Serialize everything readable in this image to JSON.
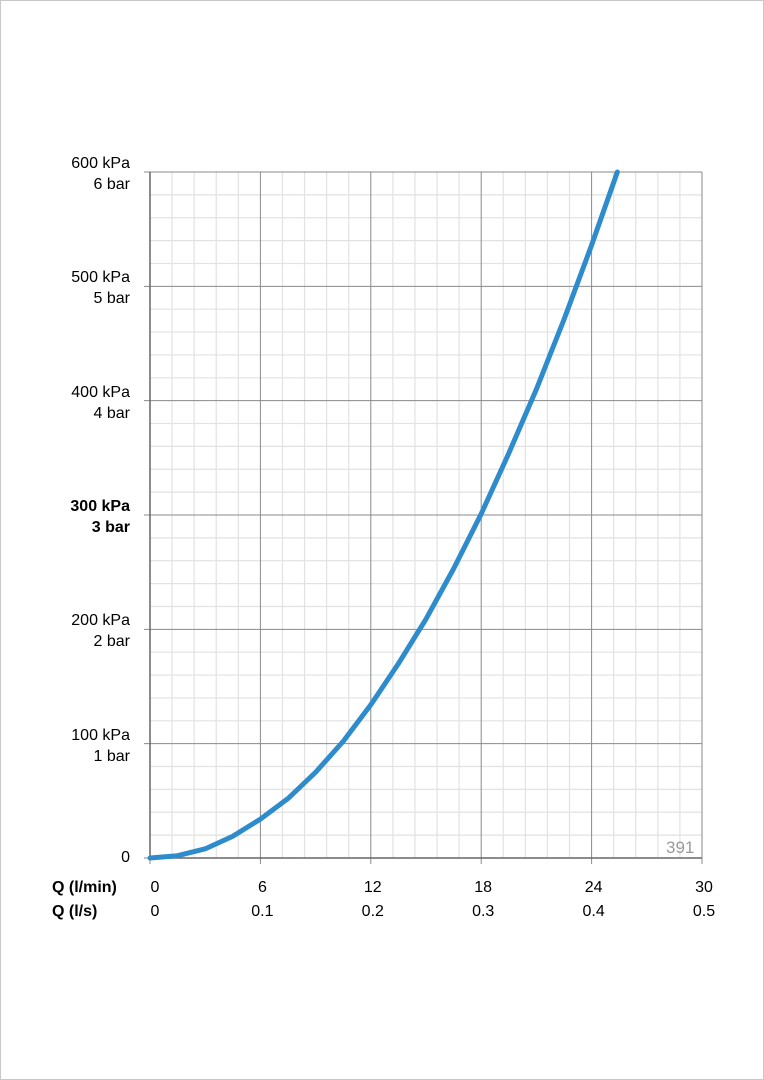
{
  "chart_data": {
    "type": "line",
    "x_axes": [
      {
        "label": "Q (l/min)",
        "ticks": [
          "0",
          "6",
          "12",
          "18",
          "24",
          "30"
        ]
      },
      {
        "label": "Q (l/s)",
        "ticks": [
          "0",
          "0.1",
          "0.2",
          "0.3",
          "0.4",
          "0.5"
        ]
      }
    ],
    "y_ticks": [
      {
        "kpa": "0",
        "bar": "",
        "bold": false
      },
      {
        "kpa": "100 kPa",
        "bar": "1 bar",
        "bold": false
      },
      {
        "kpa": "200 kPa",
        "bar": "2 bar",
        "bold": false
      },
      {
        "kpa": "300 kPa",
        "bar": "3 bar",
        "bold": true
      },
      {
        "kpa": "400 kPa",
        "bar": "4 bar",
        "bold": false
      },
      {
        "kpa": "500 kPa",
        "bar": "5 bar",
        "bold": false
      },
      {
        "kpa": "600 kPa",
        "bar": "6 bar",
        "bold": false
      }
    ],
    "xlim": [
      0,
      30
    ],
    "ylim": [
      0,
      600
    ],
    "grid": true,
    "series": [
      {
        "color": "#2e8bcc",
        "x": [
          0,
          1.5,
          3,
          4.5,
          6,
          7.5,
          9,
          10.5,
          12,
          13.5,
          15,
          16.5,
          18,
          19.5,
          21,
          22.5,
          24,
          25.4
        ],
        "y": [
          0,
          2,
          8,
          19,
          34,
          52,
          75,
          102,
          134,
          170,
          209,
          253,
          301,
          354,
          410,
          471,
          536,
          600
        ]
      }
    ],
    "annotation": "391"
  }
}
